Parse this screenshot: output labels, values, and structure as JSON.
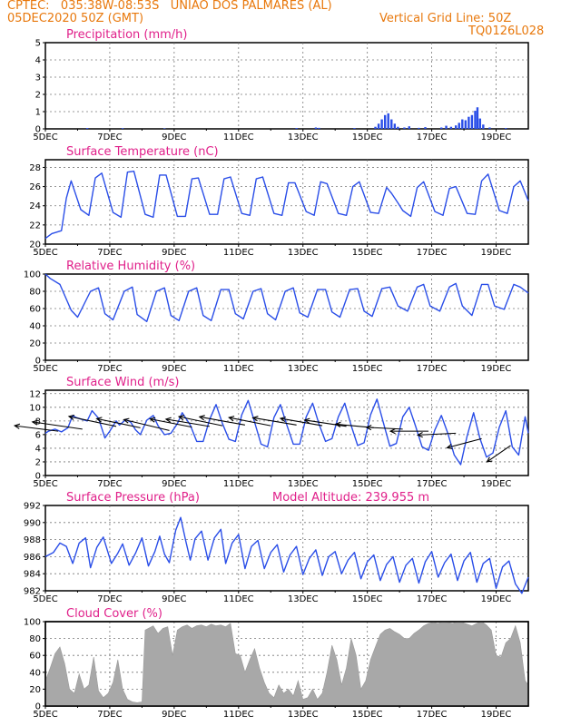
{
  "header": {
    "line1_left": "CPTEC:   035:38W-08:53S   UNIAO DOS PALMARES (AL)",
    "line2_left": "05DEC2020 50Z (GMT)",
    "line2_right": "Vertical Grid Line: 50Z",
    "line3_right": "TQ0126L028"
  },
  "colors": {
    "header": "#e8780c",
    "title": "#e0208a",
    "line": "#2a4ee8",
    "cloud": "#a8a8a8",
    "wind_arrow": "#000000"
  },
  "x_tick_labels": [
    "5DEC",
    "7DEC",
    "9DEC",
    "11DEC",
    "13DEC",
    "15DEC",
    "17DEC",
    "19DEC"
  ],
  "chart_data": [
    {
      "id": "precip",
      "type": "bar",
      "title": "Precipitation (mm/h)",
      "ylim": [
        0,
        5
      ],
      "yticks": [
        0,
        1,
        2,
        3,
        4,
        5
      ],
      "x_range_days": [
        5,
        20
      ],
      "bars": [
        [
          6.3,
          0.05
        ],
        [
          7.4,
          0.04
        ],
        [
          8.7,
          0.03
        ],
        [
          12.8,
          0.05
        ],
        [
          13.4,
          0.08
        ],
        [
          13.5,
          0.06
        ],
        [
          14.6,
          0.05
        ],
        [
          15.25,
          0.12
        ],
        [
          15.35,
          0.3
        ],
        [
          15.45,
          0.55
        ],
        [
          15.55,
          0.8
        ],
        [
          15.65,
          0.9
        ],
        [
          15.75,
          0.55
        ],
        [
          15.85,
          0.3
        ],
        [
          15.95,
          0.12
        ],
        [
          16.15,
          0.08
        ],
        [
          16.3,
          0.15
        ],
        [
          16.6,
          0.06
        ],
        [
          16.8,
          0.1
        ],
        [
          17.3,
          0.08
        ],
        [
          17.45,
          0.18
        ],
        [
          17.6,
          0.12
        ],
        [
          17.75,
          0.2
        ],
        [
          17.85,
          0.35
        ],
        [
          17.95,
          0.55
        ],
        [
          18.05,
          0.5
        ],
        [
          18.15,
          0.7
        ],
        [
          18.25,
          0.8
        ],
        [
          18.35,
          1.05
        ],
        [
          18.42,
          1.25
        ],
        [
          18.5,
          0.6
        ],
        [
          18.6,
          0.25
        ],
        [
          18.8,
          0.08
        ],
        [
          19.3,
          0.05
        ]
      ]
    },
    {
      "id": "temp",
      "type": "line",
      "title": "Surface Temperature (nC)",
      "ylim": [
        20,
        28.8
      ],
      "yticks": [
        20,
        22,
        24,
        26,
        28
      ],
      "x": [
        5.0,
        5.2,
        5.5,
        5.65,
        5.8,
        6.1,
        6.35,
        6.55,
        6.75,
        7.1,
        7.35,
        7.55,
        7.75,
        8.1,
        8.35,
        8.55,
        8.75,
        9.1,
        9.35,
        9.55,
        9.75,
        10.1,
        10.35,
        10.55,
        10.75,
        11.1,
        11.35,
        11.55,
        11.75,
        12.1,
        12.35,
        12.55,
        12.75,
        13.1,
        13.35,
        13.55,
        13.75,
        14.1,
        14.35,
        14.55,
        14.75,
        15.1,
        15.35,
        15.6,
        15.75,
        15.95,
        16.1,
        16.35,
        16.55,
        16.75,
        17.1,
        17.35,
        17.55,
        17.75,
        18.1,
        18.35,
        18.55,
        18.75,
        19.1,
        19.35,
        19.55,
        19.75,
        20.0
      ],
      "y": [
        20.6,
        21.1,
        21.4,
        24.8,
        26.6,
        23.6,
        23.0,
        26.9,
        27.4,
        23.3,
        22.8,
        27.5,
        27.6,
        23.1,
        22.8,
        27.2,
        27.2,
        22.9,
        22.9,
        26.8,
        26.9,
        23.1,
        23.1,
        26.8,
        27.0,
        23.2,
        23.0,
        26.8,
        27.0,
        23.2,
        23.0,
        26.4,
        26.4,
        23.4,
        23.0,
        26.5,
        26.3,
        23.2,
        23.0,
        26.0,
        26.5,
        23.3,
        23.2,
        25.9,
        25.3,
        24.3,
        23.5,
        22.9,
        25.9,
        26.5,
        23.4,
        23.0,
        25.8,
        26.0,
        23.2,
        23.1,
        26.6,
        27.3,
        23.5,
        23.2,
        26.0,
        26.6,
        24.5
      ]
    },
    {
      "id": "rh",
      "type": "line",
      "title": "Relative Humidity (%)",
      "ylim": [
        0,
        100
      ],
      "yticks": [
        0,
        20,
        40,
        60,
        80,
        100
      ],
      "x": [
        5.0,
        5.15,
        5.45,
        5.8,
        6.0,
        6.4,
        6.65,
        6.85,
        7.1,
        7.45,
        7.7,
        7.85,
        8.15,
        8.45,
        8.7,
        8.9,
        9.15,
        9.45,
        9.7,
        9.9,
        10.15,
        10.45,
        10.7,
        10.9,
        11.15,
        11.45,
        11.7,
        11.9,
        12.15,
        12.45,
        12.7,
        12.9,
        13.15,
        13.45,
        13.7,
        13.9,
        14.15,
        14.45,
        14.7,
        14.9,
        15.15,
        15.45,
        15.7,
        15.95,
        16.25,
        16.55,
        16.75,
        16.95,
        17.25,
        17.55,
        17.75,
        17.95,
        18.25,
        18.55,
        18.75,
        18.95,
        19.25,
        19.55,
        19.75,
        20.0
      ],
      "y": [
        100,
        95,
        88,
        58,
        50,
        80,
        84,
        54,
        47,
        80,
        85,
        53,
        45,
        80,
        84,
        52,
        46,
        80,
        84,
        52,
        46,
        82,
        82,
        54,
        48,
        80,
        83,
        54,
        47,
        80,
        84,
        55,
        50,
        82,
        82,
        56,
        50,
        82,
        83,
        57,
        51,
        83,
        85,
        63,
        57,
        85,
        88,
        63,
        57,
        85,
        89,
        63,
        52,
        88,
        88,
        63,
        59,
        88,
        85,
        78
      ]
    },
    {
      "id": "wind",
      "type": "line",
      "title": "Surface Wind (m/s)",
      "ylim": [
        0,
        12.5
      ],
      "yticks": [
        0,
        2,
        4,
        6,
        8,
        10,
        12
      ],
      "x": [
        5.0,
        5.1,
        5.3,
        5.5,
        5.7,
        5.85,
        5.95,
        6.15,
        6.3,
        6.45,
        6.65,
        6.85,
        7.0,
        7.2,
        7.3,
        7.5,
        7.65,
        7.8,
        7.95,
        8.15,
        8.35,
        8.5,
        8.7,
        8.9,
        9.1,
        9.25,
        9.5,
        9.7,
        9.9,
        10.1,
        10.3,
        10.5,
        10.7,
        10.9,
        11.1,
        11.3,
        11.5,
        11.7,
        11.9,
        12.1,
        12.3,
        12.5,
        12.7,
        12.9,
        13.1,
        13.3,
        13.5,
        13.7,
        13.9,
        14.1,
        14.3,
        14.5,
        14.7,
        14.9,
        15.1,
        15.3,
        15.5,
        15.7,
        15.9,
        16.1,
        16.3,
        16.5,
        16.7,
        16.9,
        17.1,
        17.3,
        17.5,
        17.7,
        17.9,
        18.1,
        18.3,
        18.5,
        18.7,
        18.9,
        19.1,
        19.3,
        19.5,
        19.7,
        19.9,
        20.0
      ],
      "y": [
        6.2,
        6.5,
        6.8,
        6.4,
        7.0,
        8.8,
        8.5,
        8.2,
        8.0,
        9.5,
        8.4,
        5.5,
        6.5,
        8.0,
        7.4,
        8.2,
        7.8,
        6.7,
        6.0,
        8.1,
        8.8,
        7.3,
        6.0,
        6.2,
        7.6,
        9.2,
        7.4,
        5.0,
        5.0,
        8.2,
        10.4,
        7.6,
        5.3,
        5.0,
        8.9,
        11.0,
        7.8,
        4.6,
        4.2,
        8.5,
        10.4,
        7.4,
        4.6,
        4.6,
        8.6,
        10.6,
        7.5,
        5.0,
        5.4,
        8.6,
        10.6,
        7.3,
        4.4,
        4.8,
        8.9,
        11.2,
        7.7,
        4.3,
        4.7,
        8.6,
        10.0,
        7.2,
        4.2,
        3.7,
        6.7,
        8.8,
        6.2,
        3.0,
        1.6,
        5.8,
        9.2,
        5.4,
        2.7,
        3.3,
        7.1,
        9.5,
        4.2,
        3.0,
        8.6,
        6.2
      ],
      "arrows": [
        {
          "day": 5.4,
          "speed": 6.5,
          "dx": -48,
          "dy": -6
        },
        {
          "day": 6.15,
          "speed": 6.8,
          "dx": -55,
          "dy": -8
        },
        {
          "day": 7.2,
          "speed": 7.2,
          "dx": -52,
          "dy": -11
        },
        {
          "day": 7.95,
          "speed": 7.0,
          "dx": -48,
          "dy": -10
        },
        {
          "day": 8.85,
          "speed": 6.6,
          "dx": -50,
          "dy": -12
        },
        {
          "day": 9.55,
          "speed": 7.1,
          "dx": -46,
          "dy": -9
        },
        {
          "day": 10.1,
          "speed": 7.2,
          "dx": -48,
          "dy": -8
        },
        {
          "day": 10.5,
          "speed": 7.3,
          "dx": -48,
          "dy": -10
        },
        {
          "day": 11.2,
          "speed": 7.4,
          "dx": -50,
          "dy": -9
        },
        {
          "day": 12.0,
          "speed": 7.3,
          "dx": -46,
          "dy": -9
        },
        {
          "day": 12.8,
          "speed": 7.4,
          "dx": -48,
          "dy": -8
        },
        {
          "day": 13.6,
          "speed": 7.3,
          "dx": -46,
          "dy": -8
        },
        {
          "day": 14.35,
          "speed": 7.2,
          "dx": -46,
          "dy": -7
        },
        {
          "day": 15.2,
          "speed": 7.0,
          "dx": -42,
          "dy": -4
        },
        {
          "day": 16.1,
          "speed": 6.8,
          "dx": -40,
          "dy": -2
        },
        {
          "day": 16.9,
          "speed": 6.5,
          "dx": -42,
          "dy": 0
        },
        {
          "day": 17.75,
          "speed": 6.2,
          "dx": -42,
          "dy": 2
        },
        {
          "day": 18.55,
          "speed": 5.4,
          "dx": -38,
          "dy": 10
        },
        {
          "day": 19.45,
          "speed": 4.4,
          "dx": -26,
          "dy": 18
        }
      ]
    },
    {
      "id": "pressure",
      "type": "line",
      "title": "Surface Pressure (hPa)",
      "annotation": "Model Altitude: 239.955 m",
      "ylim": [
        982,
        992
      ],
      "yticks": [
        982,
        984,
        986,
        988,
        990,
        992
      ],
      "x": [
        5.0,
        5.25,
        5.45,
        5.65,
        5.85,
        6.05,
        6.25,
        6.4,
        6.6,
        6.8,
        7.05,
        7.25,
        7.4,
        7.6,
        7.8,
        8.0,
        8.2,
        8.4,
        8.55,
        8.7,
        8.85,
        9.05,
        9.2,
        9.35,
        9.5,
        9.65,
        9.85,
        10.05,
        10.25,
        10.45,
        10.6,
        10.8,
        11.0,
        11.2,
        11.4,
        11.6,
        11.8,
        12.0,
        12.2,
        12.4,
        12.6,
        12.8,
        13.0,
        13.2,
        13.4,
        13.6,
        13.8,
        14.0,
        14.2,
        14.4,
        14.6,
        14.8,
        15.0,
        15.2,
        15.4,
        15.6,
        15.8,
        16.0,
        16.2,
        16.4,
        16.6,
        16.8,
        17.0,
        17.2,
        17.4,
        17.6,
        17.8,
        18.0,
        18.2,
        18.4,
        18.6,
        18.8,
        19.0,
        19.2,
        19.4,
        19.6,
        19.8,
        20.0
      ],
      "y": [
        986.0,
        986.5,
        987.6,
        987.2,
        985.2,
        987.6,
        988.2,
        984.7,
        987.1,
        988.3,
        985.2,
        986.4,
        987.5,
        985.0,
        986.4,
        988.2,
        984.9,
        986.6,
        988.4,
        986.3,
        985.3,
        989.1,
        990.6,
        988.0,
        985.6,
        988.1,
        989.0,
        985.6,
        988.2,
        989.2,
        985.2,
        987.6,
        988.6,
        984.6,
        987.2,
        987.9,
        984.6,
        986.5,
        987.4,
        984.2,
        986.2,
        987.2,
        983.9,
        985.8,
        986.8,
        983.8,
        986.0,
        986.6,
        984.0,
        985.6,
        986.5,
        983.4,
        985.4,
        986.2,
        983.2,
        985.1,
        986.0,
        983.0,
        985.0,
        985.8,
        982.9,
        985.4,
        986.6,
        983.6,
        985.3,
        986.3,
        983.2,
        985.5,
        986.5,
        983.0,
        985.2,
        985.8,
        982.3,
        984.8,
        985.5,
        982.8,
        981.7,
        983.6
      ]
    },
    {
      "id": "cloud",
      "type": "area",
      "title": "Cloud Cover (%)",
      "ylim": [
        0,
        100
      ],
      "yticks": [
        0,
        20,
        40,
        60,
        80,
        100
      ],
      "x": [
        5.0,
        5.15,
        5.3,
        5.45,
        5.6,
        5.75,
        5.9,
        6.05,
        6.2,
        6.35,
        6.5,
        6.65,
        6.8,
        6.95,
        7.1,
        7.25,
        7.4,
        7.55,
        7.7,
        7.85,
        8.0,
        8.1,
        8.2,
        8.35,
        8.5,
        8.65,
        8.8,
        8.95,
        9.1,
        9.25,
        9.4,
        9.55,
        9.7,
        9.85,
        10.0,
        10.15,
        10.3,
        10.45,
        10.6,
        10.75,
        10.9,
        11.05,
        11.2,
        11.35,
        11.5,
        11.65,
        11.8,
        11.95,
        12.1,
        12.25,
        12.4,
        12.55,
        12.7,
        12.85,
        13.0,
        13.15,
        13.3,
        13.45,
        13.6,
        13.75,
        13.9,
        14.05,
        14.2,
        14.35,
        14.5,
        14.65,
        14.8,
        14.95,
        15.1,
        15.25,
        15.4,
        15.55,
        15.7,
        15.85,
        16.0,
        16.15,
        16.3,
        16.45,
        16.6,
        16.75,
        16.9,
        17.05,
        17.2,
        17.35,
        17.5,
        17.65,
        17.8,
        17.95,
        18.1,
        18.25,
        18.4,
        18.55,
        18.7,
        18.85,
        19.0,
        19.15,
        19.3,
        19.45,
        19.6,
        19.75,
        19.9,
        20.0
      ],
      "y": [
        30,
        45,
        62,
        70,
        50,
        20,
        15,
        38,
        20,
        25,
        58,
        18,
        10,
        15,
        28,
        55,
        20,
        8,
        5,
        4,
        5,
        90,
        92,
        95,
        86,
        92,
        94,
        60,
        90,
        94,
        96,
        92,
        95,
        96,
        94,
        97,
        95,
        96,
        94,
        98,
        62,
        60,
        40,
        55,
        68,
        45,
        28,
        15,
        10,
        25,
        15,
        20,
        12,
        30,
        8,
        10,
        20,
        8,
        15,
        40,
        72,
        55,
        25,
        45,
        80,
        60,
        20,
        30,
        55,
        70,
        85,
        90,
        92,
        88,
        85,
        80,
        80,
        86,
        90,
        95,
        98,
        99,
        98,
        100,
        99,
        98,
        100,
        99,
        97,
        95,
        98,
        100,
        96,
        90,
        60,
        58,
        75,
        80,
        95,
        75,
        30,
        25
      ]
    }
  ]
}
